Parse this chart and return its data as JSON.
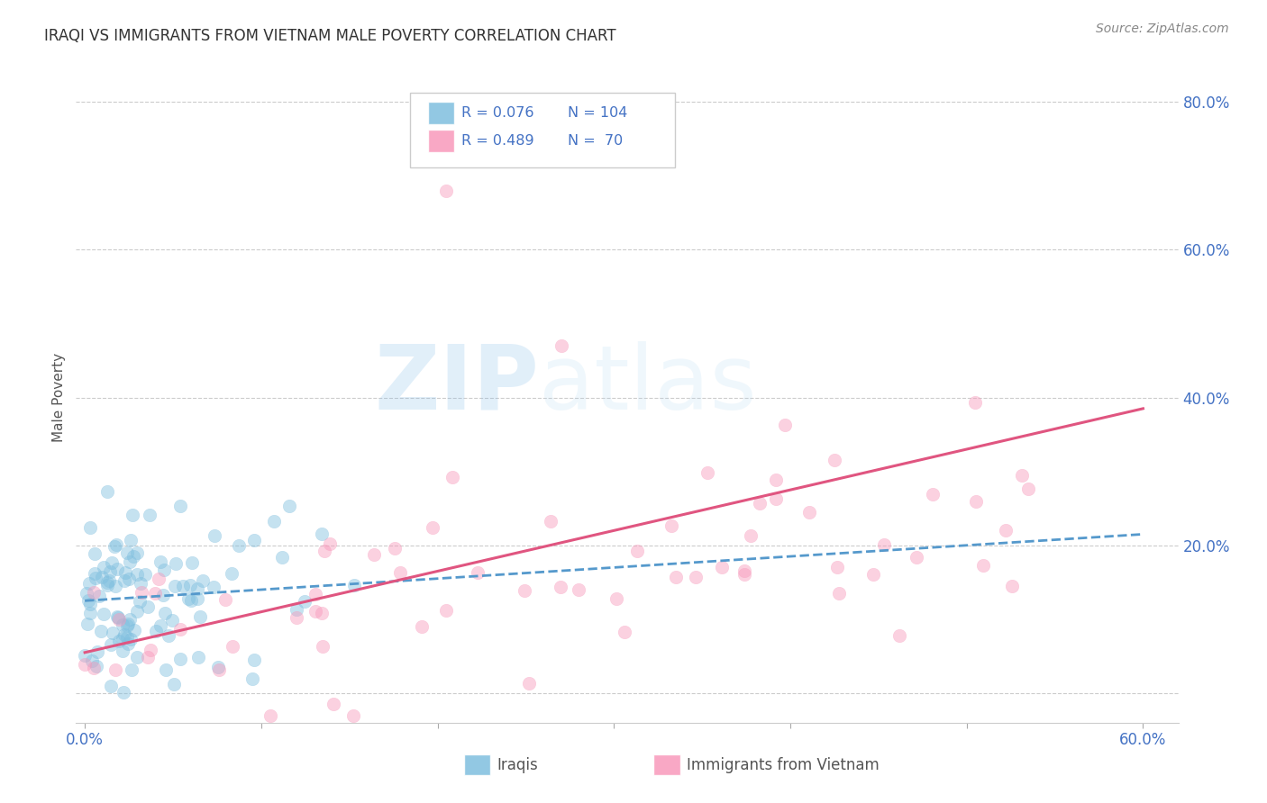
{
  "title": "IRAQI VS IMMIGRANTS FROM VIETNAM MALE POVERTY CORRELATION CHART",
  "source_text": "Source: ZipAtlas.com",
  "ylabel": "Male Poverty",
  "xlim": [
    -0.005,
    0.62
  ],
  "ylim": [
    -0.04,
    0.84
  ],
  "xticks": [
    0.0,
    0.1,
    0.2,
    0.3,
    0.4,
    0.5,
    0.6
  ],
  "xticklabels": [
    "0.0%",
    "",
    "",
    "",
    "",
    "",
    "60.0%"
  ],
  "yticks_right": [
    0.0,
    0.2,
    0.4,
    0.6,
    0.8
  ],
  "yticklabels_right": [
    "",
    "20.0%",
    "40.0%",
    "60.0%",
    "80.0%"
  ],
  "grid_color": "#cccccc",
  "background_color": "#ffffff",
  "iraqi_color": "#7fbfdf",
  "vietnam_color": "#f899bb",
  "iraqi_line_color": "#5599cc",
  "vietnam_line_color": "#e05580",
  "legend_color": "#4472c4",
  "legend_R1": "R = 0.076",
  "legend_N1": "N = 104",
  "legend_R2": "R = 0.489",
  "legend_N2": "N =  70",
  "label1": "Iraqis",
  "label2": "Immigrants from Vietnam",
  "watermark_zip": "ZIP",
  "watermark_atlas": "atlas",
  "title_color": "#333333",
  "axis_label_color": "#555555",
  "tick_color": "#4472c4",
  "iraqi_R": 0.076,
  "iraqi_N": 104,
  "vietnam_R": 0.489,
  "vietnam_N": 70,
  "iraq_line_x0": 0.0,
  "iraq_line_x1": 0.6,
  "iraq_line_y0": 0.125,
  "iraq_line_y1": 0.215,
  "viet_line_x0": 0.0,
  "viet_line_x1": 0.6,
  "viet_line_y0": 0.055,
  "viet_line_y1": 0.385,
  "marker_size": 110,
  "marker_alpha": 0.45
}
